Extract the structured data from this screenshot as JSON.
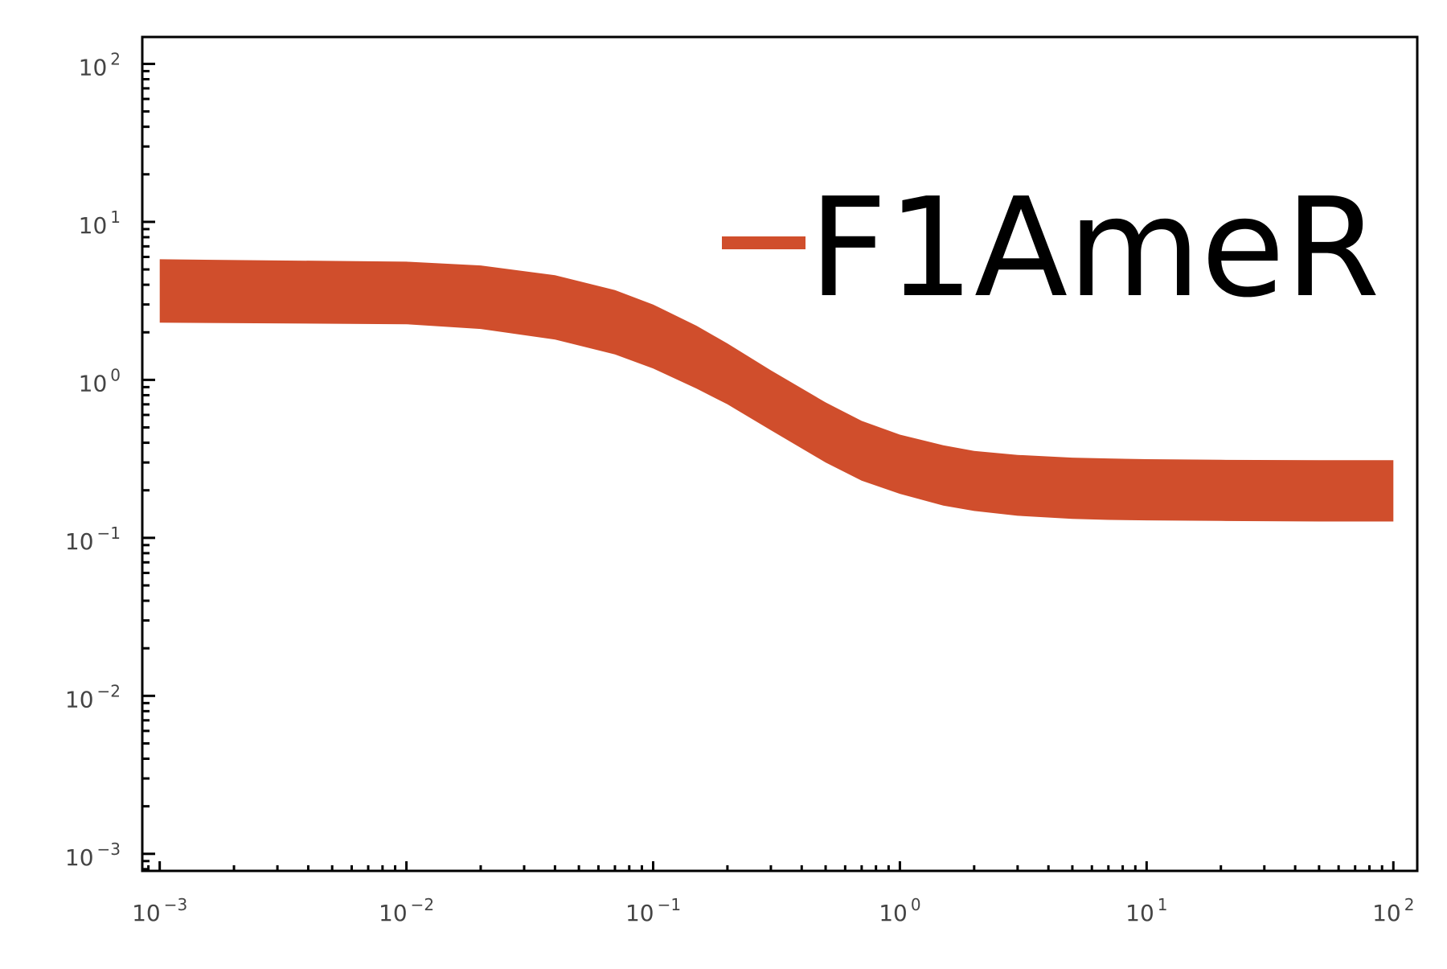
{
  "chart_data": {
    "type": "area",
    "title": "",
    "xlabel": "",
    "ylabel": "",
    "xscale": "log",
    "yscale": "log",
    "xlim": [
      0.00085,
      125
    ],
    "ylim": [
      0.00078,
      148
    ],
    "grid": false,
    "legend_position": "top-right",
    "x_ticks": [
      {
        "base": "10",
        "exp": "−3",
        "value": 0.001
      },
      {
        "base": "10",
        "exp": "−2",
        "value": 0.01
      },
      {
        "base": "10",
        "exp": "−1",
        "value": 0.1
      },
      {
        "base": "10",
        "exp": "0",
        "value": 1
      },
      {
        "base": "10",
        "exp": "1",
        "value": 10
      },
      {
        "base": "10",
        "exp": "2",
        "value": 100
      }
    ],
    "y_ticks": [
      {
        "base": "10",
        "exp": "2",
        "value": 100
      },
      {
        "base": "10",
        "exp": "1",
        "value": 10
      },
      {
        "base": "10",
        "exp": "0",
        "value": 1
      },
      {
        "base": "10",
        "exp": "−1",
        "value": 0.1
      },
      {
        "base": "10",
        "exp": "−2",
        "value": 0.01
      },
      {
        "base": "10",
        "exp": "−3",
        "value": 0.001
      }
    ],
    "series": [
      {
        "name": "F1AmeR",
        "color": "#d04e2c",
        "x": [
          0.001,
          0.01,
          0.02,
          0.04,
          0.07,
          0.1,
          0.15,
          0.2,
          0.3,
          0.5,
          0.7,
          1,
          1.5,
          2,
          3,
          5,
          7,
          10,
          20,
          50,
          100
        ],
        "upper": [
          5.8,
          5.6,
          5.3,
          4.6,
          3.7,
          3.0,
          2.2,
          1.7,
          1.15,
          0.72,
          0.55,
          0.45,
          0.385,
          0.355,
          0.335,
          0.322,
          0.318,
          0.315,
          0.312,
          0.31,
          0.31
        ],
        "lower": [
          2.3,
          2.25,
          2.1,
          1.8,
          1.45,
          1.18,
          0.88,
          0.7,
          0.48,
          0.3,
          0.23,
          0.19,
          0.16,
          0.148,
          0.138,
          0.132,
          0.13,
          0.129,
          0.128,
          0.127,
          0.127
        ]
      }
    ]
  }
}
